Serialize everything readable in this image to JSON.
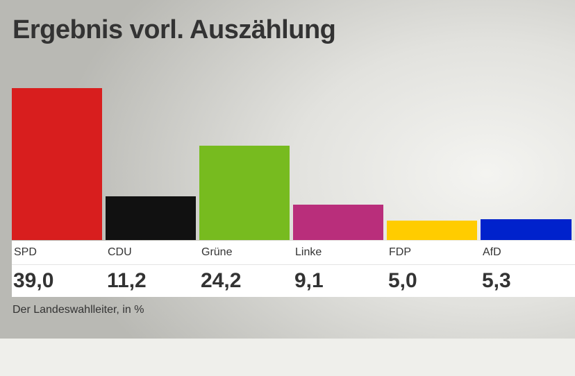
{
  "chart_data": {
    "type": "bar",
    "title": "Ergebnis vorl. Auszählung",
    "categories": [
      "SPD",
      "CDU",
      "Grüne",
      "Linke",
      "FDP",
      "AfD"
    ],
    "values": [
      39.0,
      11.2,
      24.2,
      9.1,
      5.0,
      5.3
    ],
    "value_labels": [
      "39,0",
      "11,2",
      "24,2",
      "9,1",
      "5,0",
      "5,3"
    ],
    "colors": [
      "#d81e1e",
      "#111111",
      "#77bb1f",
      "#b92e7b",
      "#ffcc00",
      "#0022cc"
    ],
    "source": "Der Landeswahlleiter, in %",
    "xlabel": "",
    "ylabel": "",
    "ylim": [
      0,
      39.0
    ]
  }
}
